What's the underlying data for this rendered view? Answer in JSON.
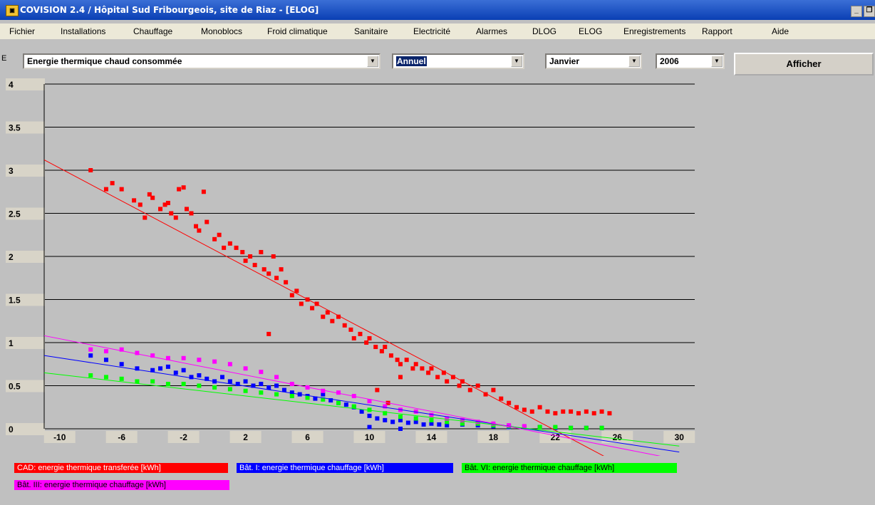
{
  "window": {
    "title": "COVISION 2.4 / Hôpital Sud Fribourgeois, site de Riaz - [ELOG]",
    "icon": "app-icon",
    "minimize": "_",
    "restore": "❐"
  },
  "menu": [
    "Fichier",
    "Installations",
    "Chauffage",
    "Monoblocs",
    "Froid climatique",
    "Sanitaire",
    "Electricité",
    "Alarmes",
    "DLOG",
    "ELOG",
    "Enregistrements",
    "Rapport",
    "Aide"
  ],
  "toolbar": {
    "marker": "E",
    "metric_select": "Energie thermique chaud consommée",
    "period_select": "Annuel",
    "month_select": "Janvier",
    "year_select": "2006",
    "show_button": "Afficher"
  },
  "legend": [
    {
      "label": "CAD: energie thermique transferée [kWh]",
      "color": "#ff0000",
      "text_color": "#ffffff"
    },
    {
      "label": "Bât. I: energie thermique chauffage [kWh]",
      "color": "#0000ff",
      "text_color": "#ffffff"
    },
    {
      "label": "Bât. VI: energie thermique chauffage [kWh]",
      "color": "#00ff00",
      "text_color": "#000000"
    },
    {
      "label": "Bât. III: energie thermique chauffage [kWh]",
      "color": "#ff00ff",
      "text_color": "#000000"
    }
  ],
  "chart_data": {
    "type": "scatter",
    "title": "",
    "xlabel": "",
    "ylabel": "",
    "xlim": [
      -11,
      31
    ],
    "ylim": [
      0,
      4
    ],
    "x_ticks": [
      "-10",
      "-6",
      "-2",
      "2",
      "6",
      "10",
      "14",
      "18",
      "22",
      "26",
      "30"
    ],
    "y_ticks": [
      "0",
      "0.5",
      "1",
      "1.5",
      "2",
      "2.5",
      "3",
      "3.5",
      "4"
    ],
    "grid": "horizontal",
    "legend_position": "bottom",
    "series": [
      {
        "name": "CAD: energie thermique transferée [kWh]",
        "color": "#ff0000",
        "trend": {
          "x": [
            -11,
            30
          ],
          "y": [
            3.12,
            -0.78
          ]
        },
        "points": [
          [
            -8,
            3.0
          ],
          [
            -7,
            2.78
          ],
          [
            -6.6,
            2.85
          ],
          [
            -6,
            2.78
          ],
          [
            -5.2,
            2.65
          ],
          [
            -4.8,
            2.6
          ],
          [
            -4.5,
            2.45
          ],
          [
            -4.2,
            2.72
          ],
          [
            -4,
            2.68
          ],
          [
            -3.5,
            2.55
          ],
          [
            -3.2,
            2.6
          ],
          [
            -3,
            2.62
          ],
          [
            -2.8,
            2.5
          ],
          [
            -2.5,
            2.45
          ],
          [
            -2.3,
            2.78
          ],
          [
            -2,
            2.8
          ],
          [
            -1.8,
            2.55
          ],
          [
            -1.5,
            2.5
          ],
          [
            -1.2,
            2.35
          ],
          [
            -1,
            2.3
          ],
          [
            -0.7,
            2.75
          ],
          [
            -0.5,
            2.4
          ],
          [
            0,
            2.2
          ],
          [
            0.3,
            2.25
          ],
          [
            0.6,
            2.1
          ],
          [
            1,
            2.15
          ],
          [
            1.4,
            2.1
          ],
          [
            1.8,
            2.05
          ],
          [
            2,
            1.95
          ],
          [
            2.3,
            2.0
          ],
          [
            2.6,
            1.9
          ],
          [
            3,
            2.05
          ],
          [
            3.2,
            1.85
          ],
          [
            3.5,
            1.8
          ],
          [
            3.8,
            2.0
          ],
          [
            4,
            1.75
          ],
          [
            4.3,
            1.85
          ],
          [
            4.6,
            1.7
          ],
          [
            5,
            1.55
          ],
          [
            5.3,
            1.6
          ],
          [
            5.6,
            1.45
          ],
          [
            6,
            1.5
          ],
          [
            6.3,
            1.4
          ],
          [
            6.6,
            1.45
          ],
          [
            7,
            1.3
          ],
          [
            7.3,
            1.35
          ],
          [
            7.6,
            1.25
          ],
          [
            8,
            1.3
          ],
          [
            8.4,
            1.2
          ],
          [
            8.8,
            1.15
          ],
          [
            9,
            1.05
          ],
          [
            9.4,
            1.1
          ],
          [
            9.8,
            1.0
          ],
          [
            10,
            1.05
          ],
          [
            10.4,
            0.95
          ],
          [
            10.8,
            0.9
          ],
          [
            11,
            0.95
          ],
          [
            11.4,
            0.85
          ],
          [
            11.8,
            0.8
          ],
          [
            12,
            0.75
          ],
          [
            12.4,
            0.8
          ],
          [
            12.8,
            0.7
          ],
          [
            13,
            0.75
          ],
          [
            13.4,
            0.7
          ],
          [
            13.8,
            0.65
          ],
          [
            14,
            0.7
          ],
          [
            14.4,
            0.6
          ],
          [
            14.8,
            0.65
          ],
          [
            15,
            0.55
          ],
          [
            15.4,
            0.6
          ],
          [
            15.8,
            0.5
          ],
          [
            16,
            0.55
          ],
          [
            16.5,
            0.45
          ],
          [
            17,
            0.5
          ],
          [
            17.5,
            0.4
          ],
          [
            18,
            0.45
          ],
          [
            18.5,
            0.35
          ],
          [
            19,
            0.3
          ],
          [
            19.5,
            0.25
          ],
          [
            20,
            0.22
          ],
          [
            20.5,
            0.2
          ],
          [
            21,
            0.25
          ],
          [
            21.5,
            0.2
          ],
          [
            22,
            0.18
          ],
          [
            22.5,
            0.2
          ],
          [
            23,
            0.2
          ],
          [
            23.5,
            0.18
          ],
          [
            24,
            0.2
          ],
          [
            24.5,
            0.18
          ],
          [
            25,
            0.2
          ],
          [
            25.5,
            0.18
          ],
          [
            3.5,
            1.1
          ],
          [
            10.5,
            0.45
          ],
          [
            11.2,
            0.3
          ],
          [
            12,
            0.6
          ]
        ]
      },
      {
        "name": "Bât. I: energie thermique chauffage [kWh]",
        "color": "#0000ff",
        "trend": {
          "x": [
            -11,
            30
          ],
          "y": [
            0.85,
            -0.27
          ]
        },
        "points": [
          [
            -8,
            0.85
          ],
          [
            -7,
            0.8
          ],
          [
            -6,
            0.75
          ],
          [
            -5,
            0.7
          ],
          [
            -4,
            0.68
          ],
          [
            -3.5,
            0.7
          ],
          [
            -3,
            0.72
          ],
          [
            -2.5,
            0.65
          ],
          [
            -2,
            0.68
          ],
          [
            -1.5,
            0.6
          ],
          [
            -1,
            0.62
          ],
          [
            -0.5,
            0.58
          ],
          [
            0,
            0.55
          ],
          [
            0.5,
            0.6
          ],
          [
            1,
            0.55
          ],
          [
            1.5,
            0.52
          ],
          [
            2,
            0.55
          ],
          [
            2.5,
            0.5
          ],
          [
            3,
            0.52
          ],
          [
            3.5,
            0.48
          ],
          [
            4,
            0.5
          ],
          [
            4.5,
            0.45
          ],
          [
            5,
            0.42
          ],
          [
            5.5,
            0.4
          ],
          [
            6,
            0.38
          ],
          [
            6.5,
            0.35
          ],
          [
            7,
            0.4
          ],
          [
            7.5,
            0.33
          ],
          [
            8,
            0.3
          ],
          [
            8.5,
            0.28
          ],
          [
            9,
            0.25
          ],
          [
            9.5,
            0.2
          ],
          [
            10,
            0.15
          ],
          [
            10.5,
            0.12
          ],
          [
            11,
            0.1
          ],
          [
            11.5,
            0.08
          ],
          [
            12,
            0.1
          ],
          [
            12.5,
            0.07
          ],
          [
            13,
            0.08
          ],
          [
            13.5,
            0.05
          ],
          [
            14,
            0.06
          ],
          [
            14.5,
            0.05
          ],
          [
            15,
            0.04
          ],
          [
            16,
            0.05
          ],
          [
            17,
            0.04
          ],
          [
            18,
            0.03
          ],
          [
            19,
            0.02
          ],
          [
            20,
            0.02
          ],
          [
            21,
            0.02
          ],
          [
            22,
            0.01
          ],
          [
            23,
            0.01
          ],
          [
            24,
            0.01
          ],
          [
            25,
            0.01
          ],
          [
            10,
            0.02
          ],
          [
            12,
            0.0
          ]
        ]
      },
      {
        "name": "Bât. VI: energie thermique chauffage [kWh]",
        "color": "#00ff00",
        "trend": {
          "x": [
            -11,
            30
          ],
          "y": [
            0.65,
            -0.2
          ]
        },
        "points": [
          [
            -8,
            0.62
          ],
          [
            -7,
            0.6
          ],
          [
            -6,
            0.58
          ],
          [
            -5,
            0.55
          ],
          [
            -4,
            0.55
          ],
          [
            -3,
            0.52
          ],
          [
            -2,
            0.52
          ],
          [
            -1,
            0.5
          ],
          [
            0,
            0.48
          ],
          [
            1,
            0.46
          ],
          [
            2,
            0.44
          ],
          [
            3,
            0.42
          ],
          [
            4,
            0.4
          ],
          [
            5,
            0.38
          ],
          [
            6,
            0.36
          ],
          [
            7,
            0.34
          ],
          [
            8,
            0.3
          ],
          [
            9,
            0.26
          ],
          [
            10,
            0.22
          ],
          [
            11,
            0.18
          ],
          [
            12,
            0.14
          ],
          [
            13,
            0.12
          ],
          [
            14,
            0.1
          ],
          [
            15,
            0.08
          ],
          [
            16,
            0.06
          ],
          [
            17,
            0.06
          ],
          [
            18,
            0.04
          ],
          [
            19,
            0.03
          ],
          [
            20,
            0.02
          ],
          [
            21,
            0.02
          ],
          [
            22,
            0.02
          ],
          [
            23,
            0.01
          ],
          [
            24,
            0.01
          ],
          [
            25,
            0.01
          ]
        ]
      },
      {
        "name": "Bât. III: energie thermique chauffage [kWh]",
        "color": "#ff00ff",
        "trend": {
          "x": [
            -11,
            30
          ],
          "y": [
            1.08,
            -0.36
          ]
        },
        "points": [
          [
            -8,
            0.92
          ],
          [
            -7,
            0.9
          ],
          [
            -6,
            0.92
          ],
          [
            -5,
            0.88
          ],
          [
            -4,
            0.85
          ],
          [
            -3,
            0.82
          ],
          [
            -2,
            0.82
          ],
          [
            -1,
            0.8
          ],
          [
            0,
            0.78
          ],
          [
            1,
            0.75
          ],
          [
            2,
            0.7
          ],
          [
            3,
            0.66
          ],
          [
            4,
            0.6
          ],
          [
            5,
            0.52
          ],
          [
            6,
            0.48
          ],
          [
            7,
            0.44
          ],
          [
            8,
            0.42
          ],
          [
            9,
            0.38
          ],
          [
            10,
            0.32
          ],
          [
            11,
            0.26
          ],
          [
            12,
            0.22
          ],
          [
            13,
            0.2
          ],
          [
            14,
            0.16
          ],
          [
            15,
            0.12
          ],
          [
            16,
            0.1
          ],
          [
            17,
            0.08
          ],
          [
            18,
            0.06
          ],
          [
            19,
            0.04
          ],
          [
            20,
            0.03
          ]
        ]
      }
    ]
  }
}
